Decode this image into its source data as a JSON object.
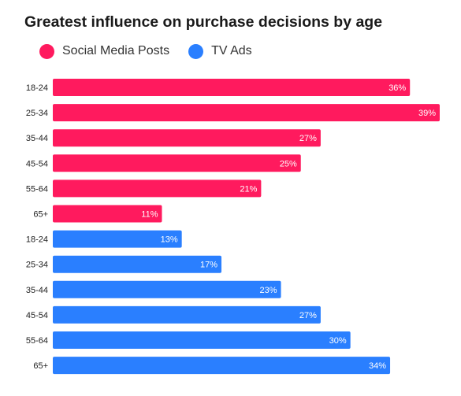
{
  "chart_data": {
    "type": "bar",
    "orientation": "horizontal",
    "title": "Greatest influence on purchase decisions by age",
    "legend_position": "top-left",
    "grid": false,
    "xlim": [
      0,
      39
    ],
    "value_suffix": "%",
    "series": [
      {
        "name": "Social Media Posts",
        "color": "#ff1a5e",
        "categories": [
          "18-24",
          "25-34",
          "35-44",
          "45-54",
          "55-64",
          "65+"
        ],
        "values": [
          36,
          39,
          27,
          25,
          21,
          11
        ],
        "labels": [
          "36%",
          "39%",
          "27%",
          "25%",
          "21%",
          "11%"
        ]
      },
      {
        "name": "TV Ads",
        "color": "#2a7fff",
        "categories": [
          "18-24",
          "25-34",
          "35-44",
          "45-54",
          "55-64",
          "65+"
        ],
        "values": [
          13,
          17,
          23,
          27,
          30,
          34
        ],
        "labels": [
          "13%",
          "17%",
          "23%",
          "27%",
          "30%",
          "34%"
        ]
      }
    ]
  }
}
